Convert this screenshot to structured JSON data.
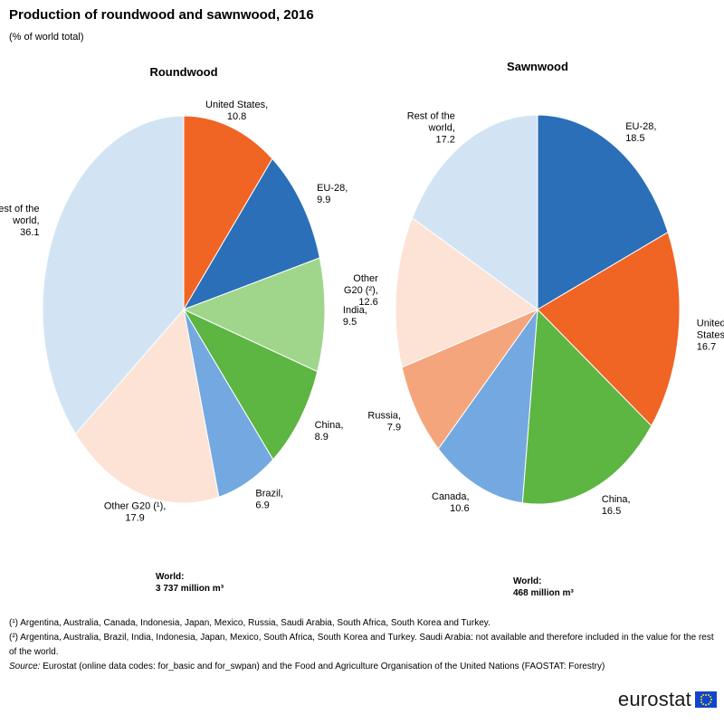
{
  "header": {
    "title": "Production of roundwood and sawnwood, 2016",
    "subtitle": "(% of world total)"
  },
  "chart_data": [
    {
      "type": "pie",
      "title": "Roundwood",
      "slices": [
        {
          "name": [
            "United States,"
          ],
          "value": 10.8,
          "value_text": "10.8",
          "color": "#f06424"
        },
        {
          "name": [
            "EU-28,"
          ],
          "value": 9.9,
          "value_text": "9.9",
          "color": "#2a6fb8"
        },
        {
          "name": [
            "India,"
          ],
          "value": 9.5,
          "value_text": "9.5",
          "color": "#a0d68c"
        },
        {
          "name": [
            "China,"
          ],
          "value": 8.9,
          "value_text": "8.9",
          "color": "#5db542"
        },
        {
          "name": [
            "Brazil,"
          ],
          "value": 6.9,
          "value_text": "6.9",
          "color": "#74a8e0"
        },
        {
          "name": [
            "Other G20 (¹),"
          ],
          "value": 17.9,
          "value_text": "17.9",
          "color": "#fde2d6"
        },
        {
          "name": [
            "Rest of the",
            "world,"
          ],
          "value": 36.1,
          "value_text": "36.1",
          "color": "#d2e4f4"
        }
      ],
      "total_label": "World:",
      "total_value": "3 737 million  m³"
    },
    {
      "type": "pie",
      "title": "Sawnwood",
      "slices": [
        {
          "name": [
            "EU-28,"
          ],
          "value": 18.5,
          "value_text": "18.5",
          "color": "#2a6fb8"
        },
        {
          "name": [
            "United",
            "States,"
          ],
          "value": 16.7,
          "value_text": "16.7",
          "color": "#f06424"
        },
        {
          "name": [
            "China,"
          ],
          "value": 16.5,
          "value_text": "16.5",
          "color": "#5db542"
        },
        {
          "name": [
            "Canada,"
          ],
          "value": 10.6,
          "value_text": "10.6",
          "color": "#74a8e0"
        },
        {
          "name": [
            "Russia,"
          ],
          "value": 7.9,
          "value_text": "7.9",
          "color": "#f5a57c"
        },
        {
          "name": [
            "Other",
            "G20 (²),"
          ],
          "value": 12.6,
          "value_text": "12.6",
          "color": "#fde2d6"
        },
        {
          "name": [
            "Rest of the",
            "world,"
          ],
          "value": 17.2,
          "value_text": "17.2",
          "color": "#d2e4f4"
        }
      ],
      "total_label": "World:",
      "total_value": "468 million  m³"
    }
  ],
  "footnotes": {
    "note1": "(¹) Argentina, Australia, Canada, Indonesia, Japan, Mexico, Russia, Saudi Arabia, South Africa, South Korea and Turkey.",
    "note2": "(²) Argentina, Australia, Brazil, India, Indonesia, Japan, Mexico, South Africa, South Korea and Turkey. Saudi Arabia: not available and therefore included in the value for the rest of the world.",
    "source_label": "Source:",
    "source_text": " Eurostat (online data codes: for_basic and for_swpan) and the Food and Agriculture Organisation of the United Nations (FAOSTAT: Forestry)"
  },
  "logo": {
    "text": "eurostat",
    "flag_color": "#0e47cb",
    "star_color": "#ffd617"
  }
}
